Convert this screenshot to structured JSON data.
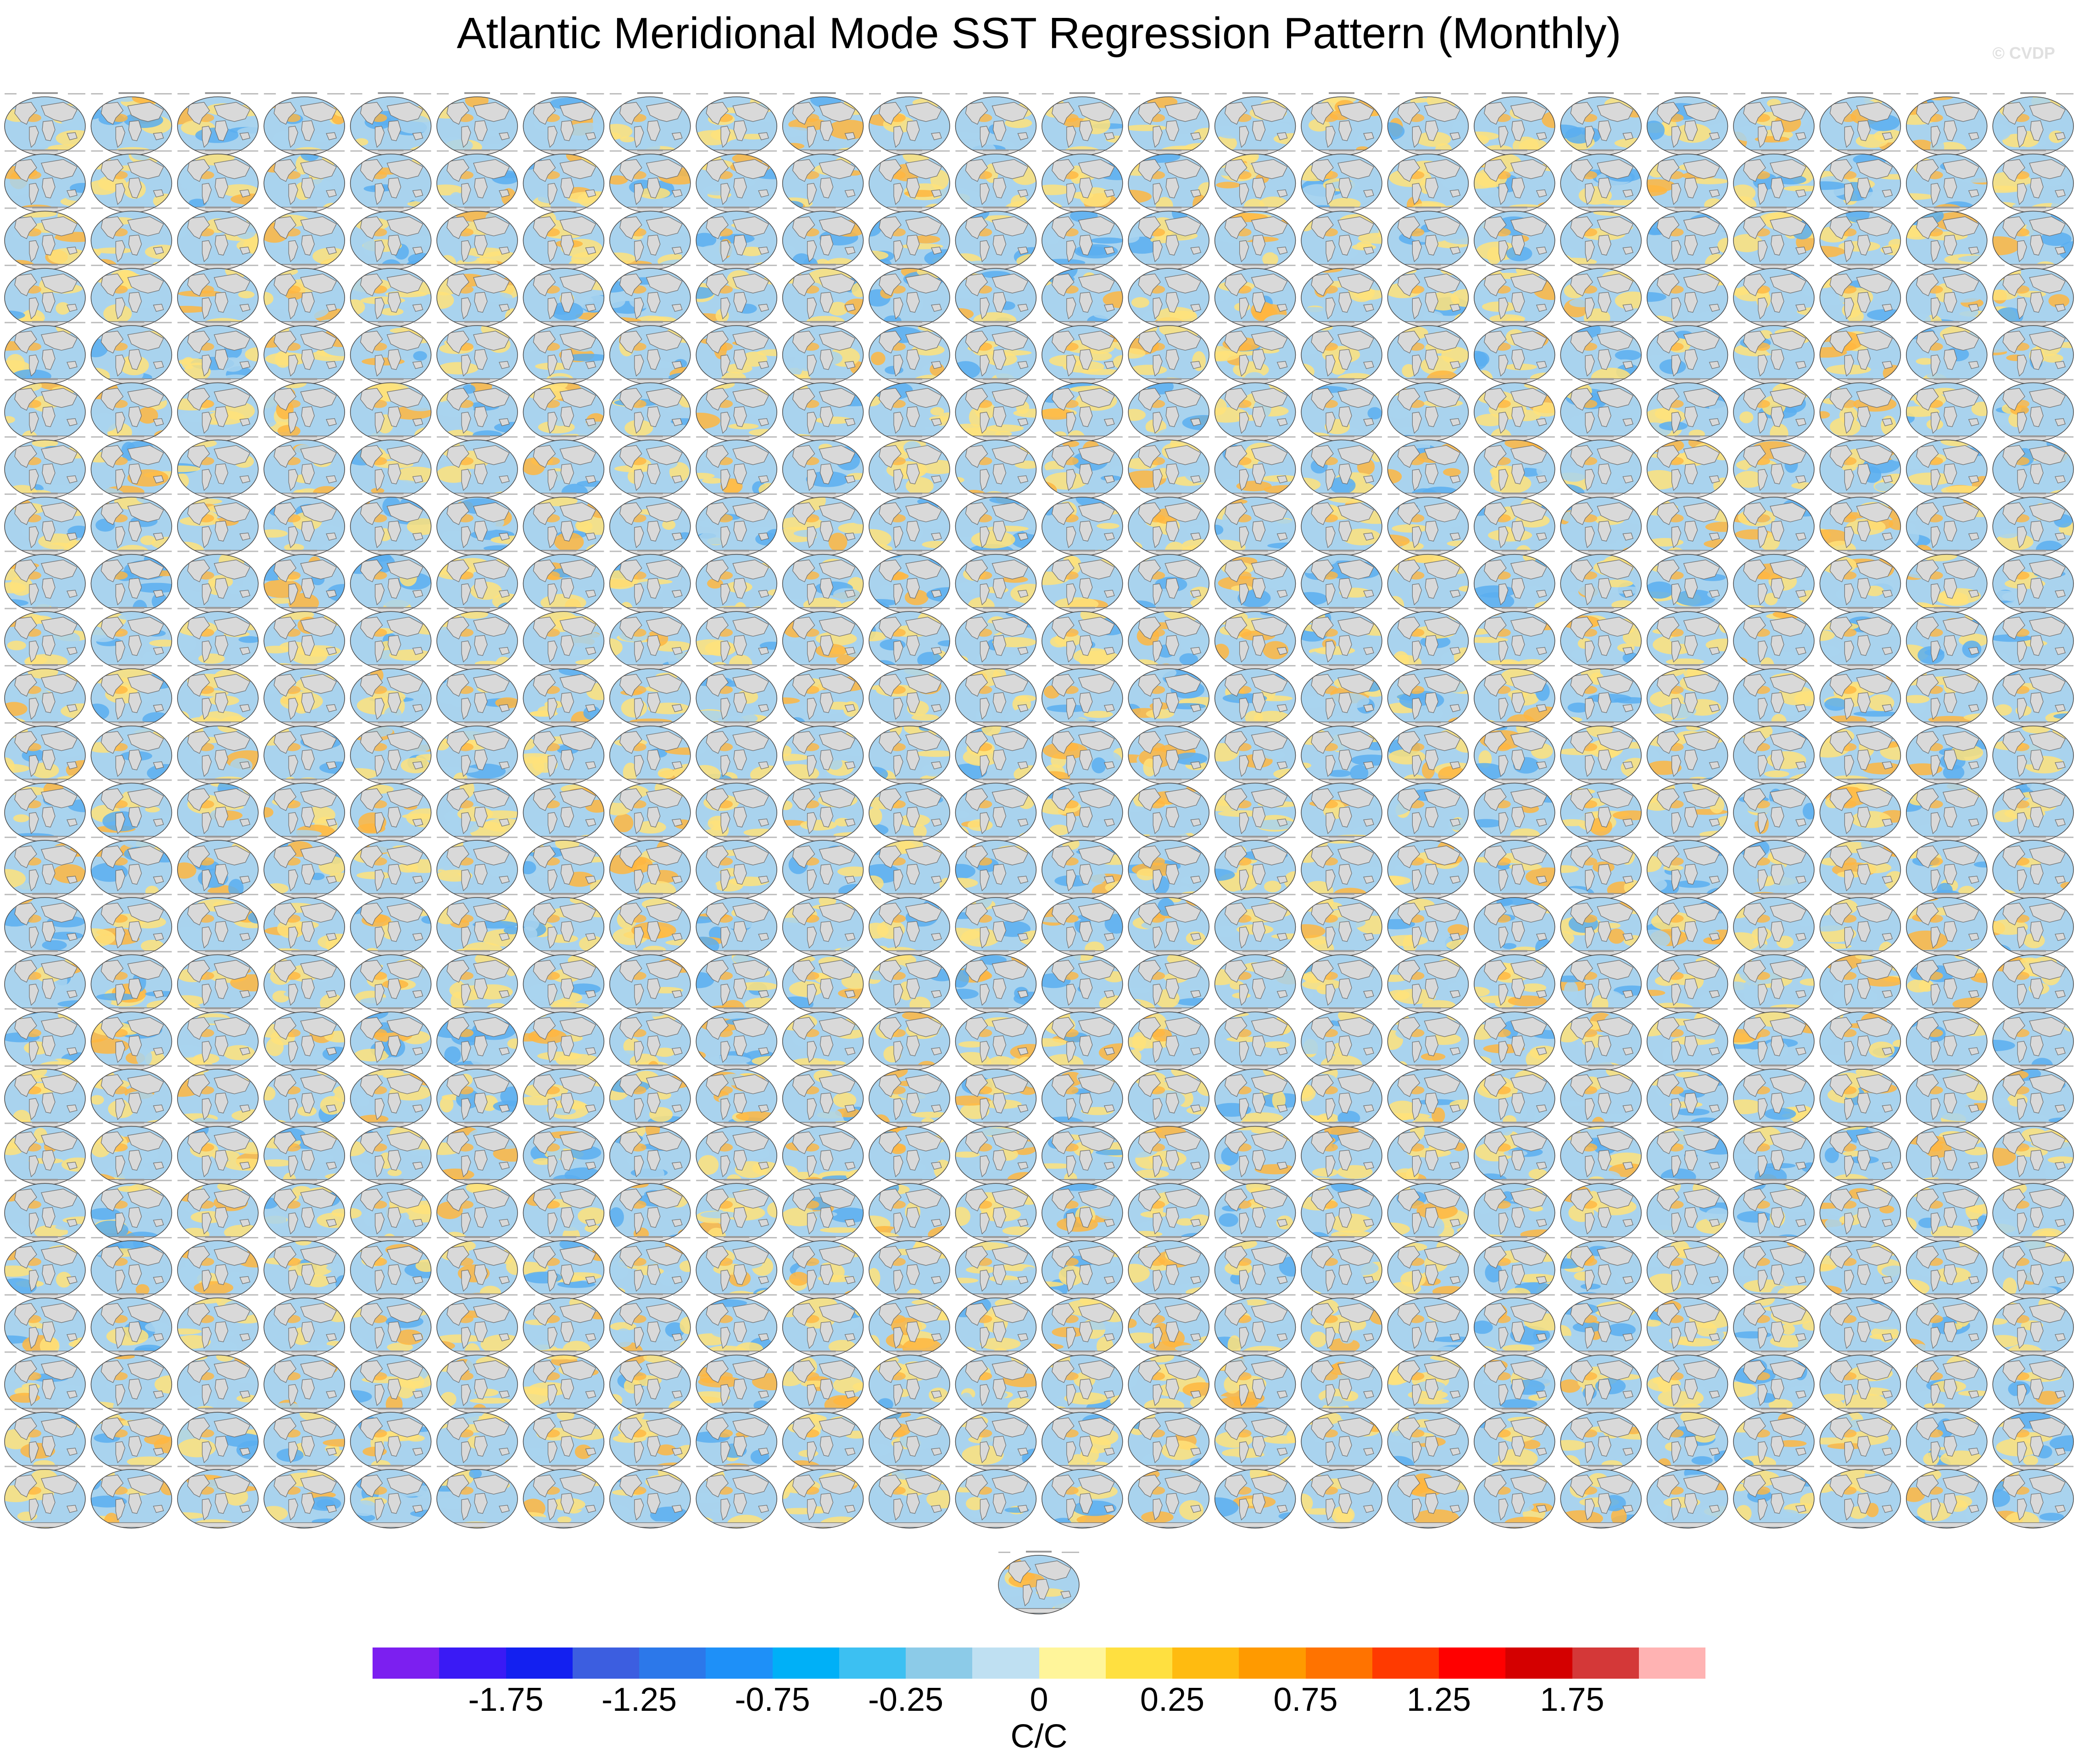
{
  "chart_data": {
    "type": "heatmap",
    "title": "Atlantic Meridional Mode SST Regression Pattern (Monthly)",
    "watermark": "© CVDP",
    "layout": "grid of global map panels",
    "panel_grid": {
      "rows": 25,
      "cols": 24,
      "extra_panels_below": 1
    },
    "colorbar": {
      "unit_label": "C/C",
      "colors": [
        "#7c1ff0",
        "#3a1af5",
        "#1320f0",
        "#3c5ee0",
        "#2c78ea",
        "#1e90f8",
        "#00b0f7",
        "#3cc0f2",
        "#8ccbe8",
        "#bfe0f2",
        "#fff59a",
        "#ffe040",
        "#ffbb10",
        "#ff9a00",
        "#ff7300",
        "#ff3a00",
        "#ff0000",
        "#d40000",
        "#d43838",
        "#ffb3b3"
      ],
      "tick_labels": [
        "-1.75",
        "-1.25",
        "-0.75",
        "-0.25",
        "0",
        "0.25",
        "0.75",
        "1.25",
        "1.75"
      ]
    },
    "map_colors": {
      "ocean_cool": "#a9d3ee",
      "ocean_cold": "#5aaef0",
      "ocean_warm": "#ffe27a",
      "ocean_hot": "#ffb640",
      "land": "#d9d9d9",
      "coast": "#6b6b6b"
    }
  }
}
